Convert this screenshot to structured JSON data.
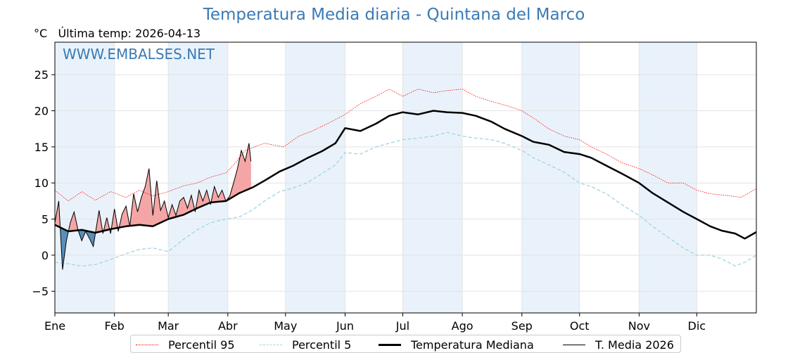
{
  "chart_data": {
    "type": "line",
    "title": "Temperatura Media diaria - Quintana del Marco",
    "unit_label": "°C",
    "subtitle": "Última temp: 2026-04-13",
    "watermark": "WWW.EMBALSES.NET",
    "xlabel": "",
    "ylabel": "°C",
    "x_ticks": [
      "Ene",
      "Feb",
      "Mar",
      "Abr",
      "May",
      "Jun",
      "Jul",
      "Ago",
      "Sep",
      "Oct",
      "Nov",
      "Dic"
    ],
    "x_tick_days": [
      1,
      32,
      60,
      91,
      121,
      152,
      182,
      213,
      244,
      274,
      305,
      335
    ],
    "xlim": [
      1,
      366
    ],
    "y_ticks": [
      "−5",
      "0",
      "5",
      "10",
      "15",
      "20",
      "25"
    ],
    "y_tick_values": [
      -5,
      0,
      5,
      10,
      15,
      20,
      25
    ],
    "ylim": [
      -8,
      29.5
    ],
    "grid": true,
    "colors": {
      "p95": "#ff0000",
      "p5": "#9fd4e3",
      "median": "#000000",
      "current": "#000000",
      "above_fill": "#f4a6a6",
      "below_fill": "#5b8fb9",
      "title": "#3a7ab5",
      "band": "#e9f2fa"
    },
    "series": [
      {
        "name": "Percentil 95",
        "style": "dotted-red",
        "points": [
          [
            1,
            9.0
          ],
          [
            8,
            7.5
          ],
          [
            15,
            8.8
          ],
          [
            22,
            7.6
          ],
          [
            30,
            8.8
          ],
          [
            38,
            8.0
          ],
          [
            45,
            9.0
          ],
          [
            52,
            8.2
          ],
          [
            60,
            8.8
          ],
          [
            68,
            9.6
          ],
          [
            75,
            10.0
          ],
          [
            82,
            10.8
          ],
          [
            90,
            11.4
          ],
          [
            95,
            12.8
          ],
          [
            100,
            14.5
          ],
          [
            110,
            15.5
          ],
          [
            120,
            15.0
          ],
          [
            128,
            16.5
          ],
          [
            135,
            17.2
          ],
          [
            145,
            18.5
          ],
          [
            152,
            19.5
          ],
          [
            160,
            21.0
          ],
          [
            168,
            22.0
          ],
          [
            175,
            23.0
          ],
          [
            182,
            22.0
          ],
          [
            190,
            23.0
          ],
          [
            198,
            22.5
          ],
          [
            205,
            22.8
          ],
          [
            213,
            23.0
          ],
          [
            220,
            22.0
          ],
          [
            228,
            21.3
          ],
          [
            235,
            20.8
          ],
          [
            244,
            20.0
          ],
          [
            250,
            19.0
          ],
          [
            258,
            17.5
          ],
          [
            266,
            16.5
          ],
          [
            274,
            16.0
          ],
          [
            280,
            15.0
          ],
          [
            288,
            14.0
          ],
          [
            296,
            12.8
          ],
          [
            305,
            12.0
          ],
          [
            313,
            11.0
          ],
          [
            320,
            10.0
          ],
          [
            328,
            10.0
          ],
          [
            335,
            9.0
          ],
          [
            342,
            8.5
          ],
          [
            350,
            8.3
          ],
          [
            358,
            8.0
          ],
          [
            366,
            9.2
          ]
        ]
      },
      {
        "name": "Percentil 5",
        "style": "dashed-lightblue",
        "points": [
          [
            1,
            -1.0
          ],
          [
            8,
            -1.2
          ],
          [
            15,
            -1.5
          ],
          [
            22,
            -1.3
          ],
          [
            30,
            -0.6
          ],
          [
            38,
            0.2
          ],
          [
            45,
            0.8
          ],
          [
            52,
            1.0
          ],
          [
            60,
            0.5
          ],
          [
            68,
            2.2
          ],
          [
            75,
            3.5
          ],
          [
            82,
            4.5
          ],
          [
            90,
            5.0
          ],
          [
            97,
            5.3
          ],
          [
            104,
            6.3
          ],
          [
            110,
            7.5
          ],
          [
            118,
            8.8
          ],
          [
            125,
            9.3
          ],
          [
            132,
            10.0
          ],
          [
            140,
            11.3
          ],
          [
            147,
            12.5
          ],
          [
            152,
            14.2
          ],
          [
            160,
            14.0
          ],
          [
            168,
            15.0
          ],
          [
            175,
            15.5
          ],
          [
            182,
            16.0
          ],
          [
            190,
            16.2
          ],
          [
            198,
            16.5
          ],
          [
            205,
            17.0
          ],
          [
            213,
            16.5
          ],
          [
            220,
            16.2
          ],
          [
            228,
            16.0
          ],
          [
            235,
            15.5
          ],
          [
            244,
            14.5
          ],
          [
            250,
            13.5
          ],
          [
            258,
            12.5
          ],
          [
            266,
            11.5
          ],
          [
            274,
            10.0
          ],
          [
            280,
            9.5
          ],
          [
            288,
            8.5
          ],
          [
            296,
            7.0
          ],
          [
            305,
            5.5
          ],
          [
            312,
            4.0
          ],
          [
            320,
            2.5
          ],
          [
            328,
            1.0
          ],
          [
            335,
            0.0
          ],
          [
            342,
            0.0
          ],
          [
            348,
            -0.5
          ],
          [
            355,
            -1.5
          ],
          [
            360,
            -1.0
          ],
          [
            366,
            0.0
          ]
        ]
      },
      {
        "name": "Temperatura Mediana",
        "style": "thick-black",
        "points": [
          [
            1,
            4.2
          ],
          [
            8,
            3.3
          ],
          [
            15,
            3.5
          ],
          [
            22,
            3.1
          ],
          [
            30,
            3.6
          ],
          [
            38,
            4.0
          ],
          [
            45,
            4.2
          ],
          [
            52,
            4.0
          ],
          [
            60,
            5.0
          ],
          [
            68,
            5.6
          ],
          [
            75,
            6.5
          ],
          [
            82,
            7.3
          ],
          [
            90,
            7.5
          ],
          [
            97,
            8.6
          ],
          [
            104,
            9.4
          ],
          [
            110,
            10.3
          ],
          [
            118,
            11.6
          ],
          [
            125,
            12.4
          ],
          [
            132,
            13.4
          ],
          [
            140,
            14.4
          ],
          [
            147,
            15.5
          ],
          [
            152,
            17.6
          ],
          [
            160,
            17.2
          ],
          [
            168,
            18.2
          ],
          [
            175,
            19.3
          ],
          [
            182,
            19.8
          ],
          [
            190,
            19.5
          ],
          [
            198,
            20.0
          ],
          [
            205,
            19.8
          ],
          [
            213,
            19.7
          ],
          [
            220,
            19.3
          ],
          [
            228,
            18.5
          ],
          [
            235,
            17.5
          ],
          [
            244,
            16.5
          ],
          [
            250,
            15.7
          ],
          [
            258,
            15.3
          ],
          [
            266,
            14.3
          ],
          [
            274,
            14.0
          ],
          [
            280,
            13.5
          ],
          [
            288,
            12.4
          ],
          [
            296,
            11.3
          ],
          [
            305,
            10.0
          ],
          [
            312,
            8.6
          ],
          [
            320,
            7.3
          ],
          [
            328,
            6.0
          ],
          [
            335,
            5.0
          ],
          [
            342,
            4.0
          ],
          [
            348,
            3.4
          ],
          [
            355,
            3.0
          ],
          [
            360,
            2.3
          ],
          [
            366,
            3.2
          ]
        ]
      },
      {
        "name": "T. Media 2026",
        "style": "thin-black",
        "points": [
          [
            1,
            4.5
          ],
          [
            3,
            7.5
          ],
          [
            5,
            -2.0
          ],
          [
            7,
            2.0
          ],
          [
            9,
            4.5
          ],
          [
            11,
            6.0
          ],
          [
            13,
            3.5
          ],
          [
            15,
            2.0
          ],
          [
            17,
            3.3
          ],
          [
            19,
            2.3
          ],
          [
            21,
            1.2
          ],
          [
            24,
            6.2
          ],
          [
            26,
            3.0
          ],
          [
            28,
            5.2
          ],
          [
            30,
            3.0
          ],
          [
            32,
            6.4
          ],
          [
            34,
            3.3
          ],
          [
            36,
            5.7
          ],
          [
            38,
            6.8
          ],
          [
            40,
            4.0
          ],
          [
            42,
            8.5
          ],
          [
            44,
            6.0
          ],
          [
            46,
            8.0
          ],
          [
            48,
            9.5
          ],
          [
            50,
            12.0
          ],
          [
            52,
            5.5
          ],
          [
            54,
            10.3
          ],
          [
            56,
            6.2
          ],
          [
            58,
            7.5
          ],
          [
            60,
            5.2
          ],
          [
            62,
            7.0
          ],
          [
            64,
            5.5
          ],
          [
            66,
            7.5
          ],
          [
            68,
            8.0
          ],
          [
            70,
            6.5
          ],
          [
            72,
            8.3
          ],
          [
            74,
            6.0
          ],
          [
            76,
            9.0
          ],
          [
            78,
            7.5
          ],
          [
            80,
            9.0
          ],
          [
            82,
            7.0
          ],
          [
            84,
            9.5
          ],
          [
            86,
            8.0
          ],
          [
            88,
            9.0
          ],
          [
            90,
            7.5
          ],
          [
            92,
            8.2
          ],
          [
            94,
            10.0
          ],
          [
            96,
            12.0
          ],
          [
            98,
            14.5
          ],
          [
            100,
            13.0
          ],
          [
            102,
            15.5
          ],
          [
            103,
            13.0
          ]
        ]
      }
    ]
  },
  "legend": {
    "items": [
      "Percentil 95",
      "Percentil 5",
      "Temperatura Mediana",
      "T. Media 2026"
    ]
  }
}
